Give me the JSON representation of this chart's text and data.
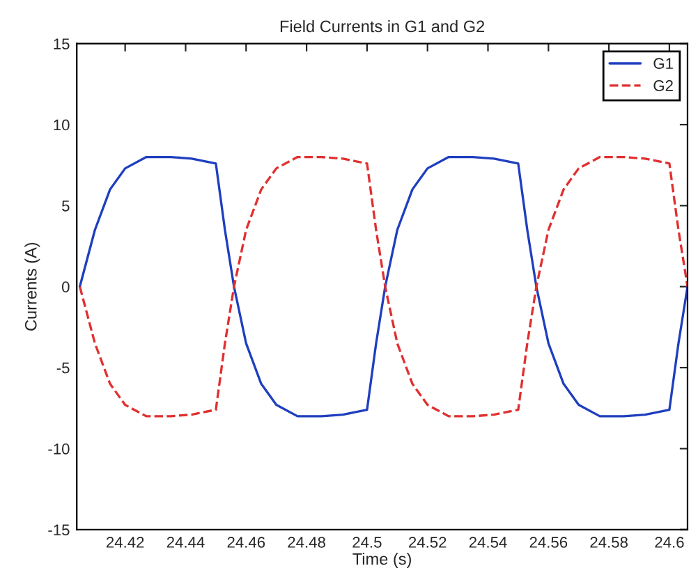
{
  "chart_data": {
    "type": "line",
    "title": "Field Currents in G1 and G2",
    "xlabel": "Time (s)",
    "ylabel": "Currents (A)",
    "x": [
      24.405,
      24.41,
      24.415,
      24.42,
      24.427,
      24.435,
      24.442,
      24.45,
      24.453,
      24.456,
      24.46,
      24.465,
      24.47,
      24.477,
      24.485,
      24.492,
      24.5,
      24.503,
      24.506,
      24.51,
      24.515,
      24.52,
      24.527,
      24.535,
      24.542,
      24.55,
      24.553,
      24.556,
      24.56,
      24.565,
      24.57,
      24.577,
      24.585,
      24.592,
      24.6,
      24.603,
      24.606
    ],
    "series": [
      {
        "name": "G1",
        "color": "#1f3fbf",
        "line_style": "solid",
        "values": [
          0,
          3.5,
          6,
          7.3,
          8,
          8,
          7.9,
          7.6,
          3.5,
          0,
          -3.5,
          -6,
          -7.3,
          -8,
          -8,
          -7.9,
          -7.6,
          -3.5,
          0,
          3.5,
          6,
          7.3,
          8,
          8,
          7.9,
          7.6,
          3.5,
          0,
          -3.5,
          -6,
          -7.3,
          -8,
          -8,
          -7.9,
          -7.6,
          -3.5,
          0
        ]
      },
      {
        "name": "G2",
        "color": "#e03030",
        "line_style": "dashed",
        "values": [
          0,
          -3.5,
          -6,
          -7.3,
          -8,
          -8,
          -7.9,
          -7.6,
          -3.5,
          0,
          3.5,
          6,
          7.3,
          8,
          8,
          7.9,
          7.6,
          3.5,
          0,
          -3.5,
          -6,
          -7.3,
          -8,
          -8,
          -7.9,
          -7.6,
          -3.5,
          0,
          3.5,
          6,
          7.3,
          8,
          8,
          7.9,
          7.6,
          3.5,
          0
        ]
      }
    ],
    "xlim": [
      24.404,
      24.606
    ],
    "xticks": [
      24.42,
      24.44,
      24.46,
      24.48,
      24.5,
      24.52,
      24.54,
      24.56,
      24.58,
      24.6
    ],
    "ylim": [
      -15,
      15
    ],
    "yticks": [
      -15,
      -10,
      -5,
      0,
      5,
      10,
      15
    ],
    "legend": "top right",
    "grid": false
  }
}
